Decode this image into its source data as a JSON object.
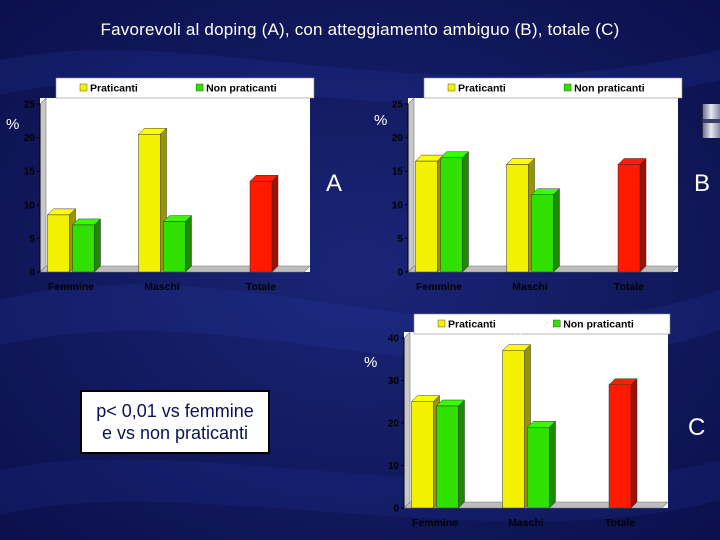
{
  "title": "Favorevoli al doping  (A), con atteggiamento ambiguo (B), totale (C)",
  "colors": {
    "background": "#0d1256",
    "praticanti": "#f2f200",
    "non_praticanti": "#2fe000",
    "totale": "#ff1a00",
    "chart_bg": "#ffffff",
    "note_text": "#0d1256"
  },
  "percent_label": "%",
  "note": {
    "line1": "p< 0,01 vs femmine",
    "line2": "e vs non praticanti"
  },
  "chart_data": [
    {
      "id": "A",
      "type": "bar",
      "letter": "A",
      "ylim": [
        0,
        25
      ],
      "yticks": [
        0,
        5,
        10,
        15,
        20,
        25
      ],
      "categories": [
        "Femmine",
        "Maschi",
        "Totale"
      ],
      "legend": [
        "Praticanti",
        "Non praticanti"
      ],
      "series": [
        {
          "name": "Praticanti",
          "values": [
            8.5,
            20.5,
            null
          ]
        },
        {
          "name": "Non praticanti",
          "values": [
            7,
            7.5,
            null
          ]
        },
        {
          "name": "Totale",
          "values": [
            null,
            null,
            13.5
          ]
        }
      ],
      "annotation": {
        "text": "**",
        "category": 1
      }
    },
    {
      "id": "B",
      "type": "bar",
      "letter": "B",
      "ylim": [
        0,
        25
      ],
      "yticks": [
        0,
        5,
        10,
        15,
        20,
        25
      ],
      "categories": [
        "Femmine",
        "Maschi",
        "Totale"
      ],
      "legend": [
        "Praticanti",
        "Non praticanti"
      ],
      "series": [
        {
          "name": "Praticanti",
          "values": [
            16.5,
            16,
            null
          ]
        },
        {
          "name": "Non praticanti",
          "values": [
            17,
            11.5,
            null
          ]
        },
        {
          "name": "Totale",
          "values": [
            null,
            null,
            16
          ]
        }
      ]
    },
    {
      "id": "C",
      "type": "bar",
      "letter": "C",
      "ylim": [
        0,
        40
      ],
      "yticks": [
        0,
        10,
        20,
        30,
        40
      ],
      "categories": [
        "Femmine",
        "Maschi",
        "Totale"
      ],
      "legend": [
        "Praticanti",
        "Non praticanti"
      ],
      "series": [
        {
          "name": "Praticanti",
          "values": [
            25,
            37,
            null
          ]
        },
        {
          "name": "Non praticanti",
          "values": [
            24,
            19,
            null
          ]
        },
        {
          "name": "Totale",
          "values": [
            null,
            null,
            29
          ]
        }
      ],
      "annotation": {
        "text": "**",
        "category": 1
      }
    }
  ]
}
